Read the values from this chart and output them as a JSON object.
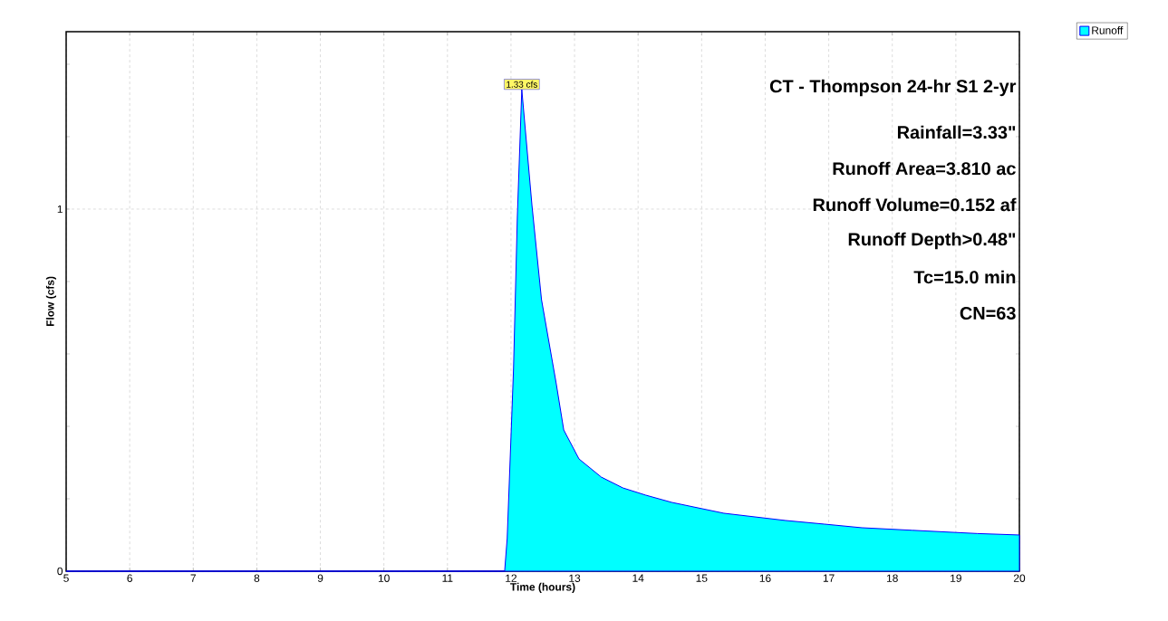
{
  "chart_data": {
    "type": "area",
    "xlabel": "Time  (hours)",
    "ylabel": "Flow  (cfs)",
    "xlim": [
      5,
      20
    ],
    "xticks": [
      5,
      6,
      7,
      8,
      9,
      10,
      11,
      12,
      13,
      14,
      15,
      16,
      17,
      18,
      19,
      20
    ],
    "ylim": [
      0,
      1.49
    ],
    "yticks": [
      0,
      {
        "value": 0.2,
        "label": null
      },
      {
        "value": 0.4,
        "label": null
      },
      {
        "value": 0.6,
        "label": null
      },
      {
        "value": 0.8,
        "label": null
      },
      1,
      {
        "value": 1.2,
        "label": null
      },
      {
        "value": 1.4,
        "label": null
      }
    ],
    "grid": true,
    "legend": "top right",
    "series": [
      {
        "name": "Runoff",
        "color": "#00ffff",
        "x": [
          5,
          11.9,
          11.94,
          12.04,
          12.1,
          12.17,
          12.33,
          12.48,
          12.71,
          12.83,
          13.07,
          13.42,
          13.76,
          14.12,
          14.53,
          14.94,
          15.35,
          16.32,
          16.93,
          17.52,
          18.31,
          19.34,
          20
        ],
        "values": [
          0,
          0,
          0.09,
          0.56,
          0.98,
          1.33,
          1.01,
          0.75,
          0.52,
          0.39,
          0.31,
          0.26,
          0.23,
          0.21,
          0.19,
          0.175,
          0.16,
          0.14,
          0.13,
          0.12,
          0.113,
          0.104,
          0.1
        ]
      }
    ],
    "annotations": [
      {
        "text": "1.33 cfs",
        "x": 12.17,
        "y": 1.33
      },
      "CT - Thompson 24-hr S1 2-yr",
      "Rainfall=3.33\"",
      "Runoff Area=3.810 ac",
      "Runoff Volume=0.152 af",
      "Runoff Depth>0.48\"",
      "Tc=15.0 min",
      "CN=63"
    ]
  }
}
